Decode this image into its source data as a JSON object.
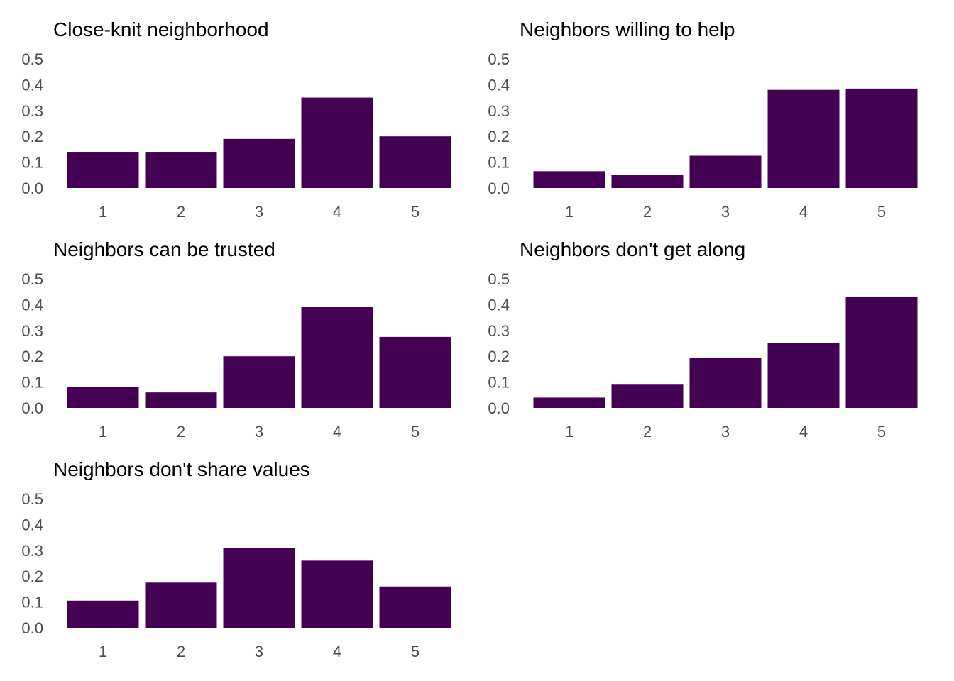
{
  "colors": {
    "bar": "#440154",
    "tick_text": "#4d4d4d",
    "title_text": "#000000",
    "background": "#ffffff"
  },
  "chart_data": [
    {
      "type": "bar",
      "title": "Close-knit neighborhood",
      "categories": [
        "1",
        "2",
        "3",
        "4",
        "5"
      ],
      "values": [
        0.14,
        0.14,
        0.19,
        0.35,
        0.2
      ],
      "xlabel": "",
      "ylabel": "",
      "ylim": [
        0,
        0.5
      ],
      "yticks": [
        "0.0",
        "0.1",
        "0.2",
        "0.3",
        "0.4",
        "0.5"
      ],
      "grid": false
    },
    {
      "type": "bar",
      "title": "Neighbors willing to help",
      "categories": [
        "1",
        "2",
        "3",
        "4",
        "5"
      ],
      "values": [
        0.065,
        0.05,
        0.125,
        0.38,
        0.385
      ],
      "xlabel": "",
      "ylabel": "",
      "ylim": [
        0,
        0.5
      ],
      "yticks": [
        "0.0",
        "0.1",
        "0.2",
        "0.3",
        "0.4",
        "0.5"
      ],
      "grid": false
    },
    {
      "type": "bar",
      "title": "Neighbors can be trusted",
      "categories": [
        "1",
        "2",
        "3",
        "4",
        "5"
      ],
      "values": [
        0.08,
        0.06,
        0.2,
        0.39,
        0.275
      ],
      "xlabel": "",
      "ylabel": "",
      "ylim": [
        0,
        0.5
      ],
      "yticks": [
        "0.0",
        "0.1",
        "0.2",
        "0.3",
        "0.4",
        "0.5"
      ],
      "grid": false
    },
    {
      "type": "bar",
      "title": "Neighbors don't get along",
      "categories": [
        "1",
        "2",
        "3",
        "4",
        "5"
      ],
      "values": [
        0.04,
        0.09,
        0.195,
        0.25,
        0.43
      ],
      "xlabel": "",
      "ylabel": "",
      "ylim": [
        0,
        0.5
      ],
      "yticks": [
        "0.0",
        "0.1",
        "0.2",
        "0.3",
        "0.4",
        "0.5"
      ],
      "grid": false
    },
    {
      "type": "bar",
      "title": "Neighbors don't share values",
      "categories": [
        "1",
        "2",
        "3",
        "4",
        "5"
      ],
      "values": [
        0.105,
        0.175,
        0.31,
        0.26,
        0.16
      ],
      "xlabel": "",
      "ylabel": "",
      "ylim": [
        0,
        0.5
      ],
      "yticks": [
        "0.0",
        "0.1",
        "0.2",
        "0.3",
        "0.4",
        "0.5"
      ],
      "grid": false
    }
  ]
}
